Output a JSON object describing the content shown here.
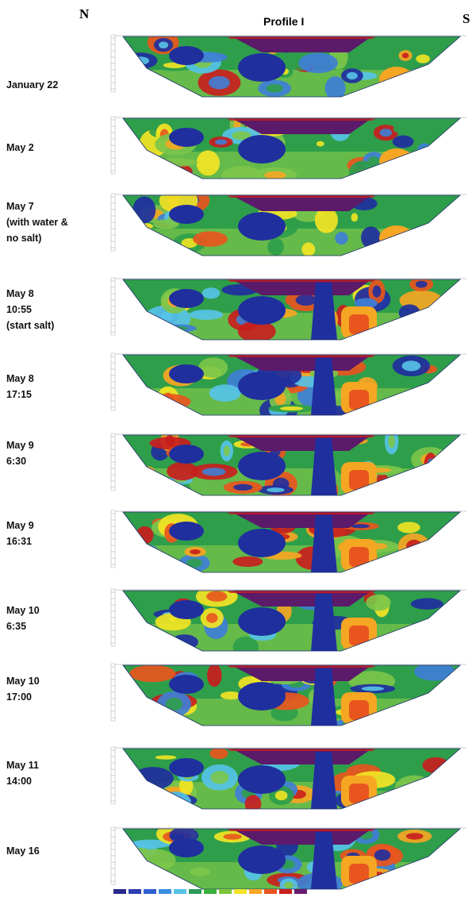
{
  "header": {
    "north": "N",
    "south": "S",
    "title": "Profile I"
  },
  "panels": [
    {
      "label": [
        "January 22"
      ]
    },
    {
      "label": [
        "May 2"
      ]
    },
    {
      "label": [
        "May 7",
        "(with water &",
        "no salt)"
      ]
    },
    {
      "label": [
        "May 8",
        "10:55",
        "(start salt)"
      ]
    },
    {
      "label": [
        "May 8",
        "17:15"
      ]
    },
    {
      "label": [
        "May 9",
        "6:30"
      ]
    },
    {
      "label": [
        "May 9",
        "16:31"
      ]
    },
    {
      "label": [
        "May 10",
        "6:35"
      ]
    },
    {
      "label": [
        "May 10",
        "17:00"
      ]
    },
    {
      "label": [
        "May 11",
        "14:00"
      ]
    },
    {
      "label": [
        "May 16"
      ]
    }
  ],
  "colors": {
    "scale": [
      "#2a2a8c",
      "#2d3fb0",
      "#2f5fd0",
      "#3a8ee0",
      "#56c3e6",
      "#2e9a5c",
      "#3aaf3c",
      "#7dc63a",
      "#f2e424",
      "#f5a623",
      "#e8561e",
      "#c81e1e",
      "#6a1a6e"
    ],
    "deep_blue": "#1f2f9e",
    "purple": "#5b1a6a",
    "green": "#2f9e4a",
    "light_green": "#7cc64a"
  }
}
